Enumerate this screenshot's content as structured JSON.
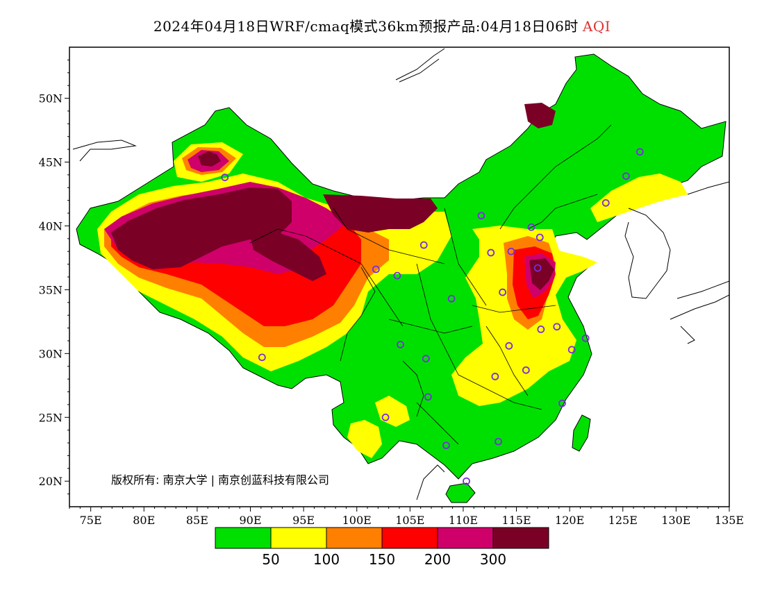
{
  "title": {
    "main": "2024年04月18日WRF/cmaq模式36km预报产品:04月18日06时",
    "variable": "AQI"
  },
  "map": {
    "lon_range": [
      73,
      135
    ],
    "lat_range": [
      18,
      54
    ],
    "x_ticks": [
      "75E",
      "80E",
      "85E",
      "90E",
      "95E",
      "100E",
      "105E",
      "110E",
      "115E",
      "120E",
      "125E",
      "130E",
      "135E"
    ],
    "y_ticks": [
      "20N",
      "25N",
      "30N",
      "35N",
      "40N",
      "45N",
      "50N"
    ],
    "copyright": "版权所有: 南京大学 | 南京创蓝科技有限公司"
  },
  "legend": {
    "colors": [
      "#00e000",
      "#ffff00",
      "#ff8000",
      "#ff0000",
      "#d0006a",
      "#7a0026"
    ],
    "labels": [
      "50",
      "100",
      "150",
      "200",
      "300"
    ]
  },
  "stations": [
    [
      87.6,
      43.8
    ],
    [
      91.1,
      29.7
    ],
    [
      101.8,
      36.6
    ],
    [
      103.8,
      36.1
    ],
    [
      106.3,
      38.5
    ],
    [
      104.1,
      30.7
    ],
    [
      106.5,
      29.6
    ],
    [
      106.7,
      26.6
    ],
    [
      102.7,
      25.0
    ],
    [
      108.4,
      22.8
    ],
    [
      111.7,
      40.8
    ],
    [
      112.6,
      37.9
    ],
    [
      108.9,
      34.3
    ],
    [
      113.7,
      34.8
    ],
    [
      114.3,
      30.6
    ],
    [
      113.0,
      28.2
    ],
    [
      115.9,
      28.7
    ],
    [
      117.3,
      31.9
    ],
    [
      118.8,
      32.1
    ],
    [
      120.2,
      30.3
    ],
    [
      121.5,
      31.2
    ],
    [
      119.3,
      26.1
    ],
    [
      113.3,
      23.1
    ],
    [
      110.3,
      20.0
    ],
    [
      114.5,
      38.0
    ],
    [
      116.4,
      39.9
    ],
    [
      117.2,
      39.1
    ],
    [
      117.0,
      36.7
    ],
    [
      123.4,
      41.8
    ],
    [
      125.3,
      43.9
    ],
    [
      126.6,
      45.8
    ]
  ]
}
